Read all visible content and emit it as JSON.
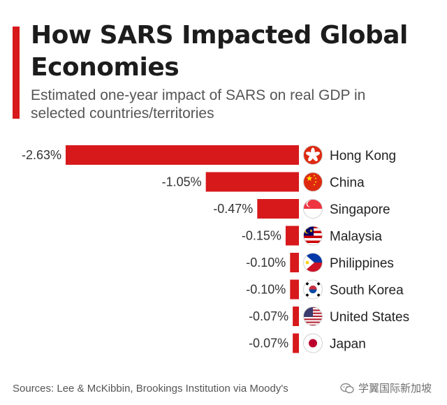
{
  "header": {
    "title": "How SARS Impacted Global Economies",
    "subtitle": "Estimated one-year impact of SARS on real GDP in selected countries/territories"
  },
  "footer": {
    "source": "Sources: Lee & McKibbin, Brookings Institution via Moody's",
    "watermark": "学翼国际新加坡"
  },
  "colors": {
    "accent": "#d7191c",
    "bar": "#d7191c",
    "text": "#1c1c1c",
    "muted": "#555555"
  },
  "chart_data": {
    "type": "bar",
    "orientation": "horizontal",
    "categories": [
      "Hong Kong",
      "China",
      "Singapore",
      "Malaysia",
      "Philippines",
      "South Korea",
      "United States",
      "Japan"
    ],
    "values": [
      -2.63,
      -1.05,
      -0.47,
      -0.15,
      -0.1,
      -0.1,
      -0.07,
      -0.07
    ],
    "labels": [
      "-2.63%",
      "-1.05%",
      "-0.47%",
      "-0.15%",
      "-0.10%",
      "-0.10%",
      "-0.07%",
      "-0.07%"
    ],
    "icons": [
      "hong-kong-flag-icon",
      "china-flag-icon",
      "singapore-flag-icon",
      "malaysia-flag-icon",
      "philippines-flag-icon",
      "south-korea-flag-icon",
      "united-states-flag-icon",
      "japan-flag-icon"
    ],
    "title": "How SARS Impacted Global Economies",
    "subtitle": "Estimated one-year impact of SARS on real GDP in selected countries/territories",
    "unit": "%",
    "xlim": [
      -2.63,
      0
    ],
    "grid": false,
    "legend": "none"
  }
}
